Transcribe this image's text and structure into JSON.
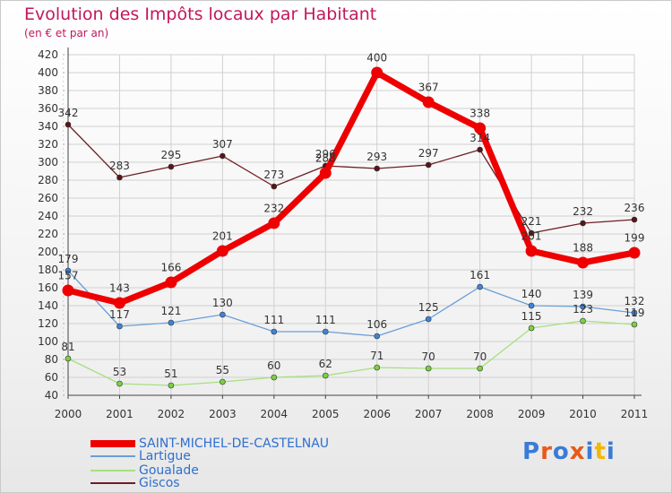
{
  "title": "Evolution des Impôts locaux par Habitant",
  "subtitle": "(en € et par an)",
  "logo": {
    "text": "Proxiti",
    "letter_colors": [
      "#3a7bd5",
      "#e8591a",
      "#3a7bd5",
      "#e8591a",
      "#3a7bd5",
      "#f2b705",
      "#3a7bd5"
    ]
  },
  "chart_data": {
    "type": "line",
    "title": "Evolution des Impôts locaux par Habitant",
    "xlabel": "",
    "ylabel": "(en € et par an)",
    "categories": [
      "2000",
      "2001",
      "2002",
      "2003",
      "2004",
      "2005",
      "2006",
      "2007",
      "2008",
      "2009",
      "2010",
      "2011"
    ],
    "ylim": [
      40,
      420
    ],
    "yticks": [
      40,
      60,
      80,
      100,
      120,
      140,
      160,
      180,
      200,
      220,
      240,
      260,
      280,
      300,
      320,
      340,
      360,
      380,
      400,
      420
    ],
    "grid": true,
    "legend_position": "bottom-left",
    "series": [
      {
        "name": "Giscos",
        "color": "#6d1f24",
        "marker": "#5a1418",
        "width": 1.3,
        "radius": 3,
        "values": [
          342,
          283,
          295,
          307,
          273,
          296,
          293,
          297,
          314,
          221,
          232,
          236
        ],
        "labels": [
          "342",
          "283",
          "295",
          "307",
          "273",
          "296",
          "293",
          "297",
          "314",
          "221",
          "232",
          "236"
        ]
      },
      {
        "name": "Lartigue",
        "color": "#6aa0d6",
        "marker": "#3d84d8",
        "width": 1.3,
        "radius": 3,
        "values": [
          179,
          117,
          121,
          130,
          111,
          111,
          106,
          125,
          161,
          140,
          139,
          132
        ],
        "labels": [
          "179",
          "117",
          "121",
          "130",
          "111",
          "111",
          "106",
          "125",
          "161",
          "140",
          "139",
          "132"
        ]
      },
      {
        "name": "Goualade",
        "color": "#a6df80",
        "marker": "#7bd142",
        "width": 1.3,
        "radius": 3,
        "values": [
          81,
          53,
          51,
          55,
          60,
          62,
          71,
          70,
          70,
          115,
          123,
          119
        ],
        "labels": [
          "81",
          "53",
          "51",
          "55",
          "60",
          "62",
          "71",
          "70",
          "70",
          "115",
          "123",
          "119"
        ]
      },
      {
        "name": "SAINT-MICHEL-DE-CASTELNAU",
        "color": "#ee0000",
        "marker": "#ee0000",
        "width": 7,
        "radius": 6.5,
        "values": [
          157,
          143,
          166,
          201,
          232,
          288,
          400,
          367,
          338,
          201,
          188,
          199
        ],
        "labels": [
          "157",
          "143",
          "166",
          "201",
          "232",
          "288",
          "400",
          "367",
          "338",
          "201",
          "188",
          "199"
        ]
      }
    ]
  },
  "legend": [
    {
      "label": "SAINT-MICHEL-DE-CASTELNAU",
      "color": "#ee0000",
      "thickness": 8
    },
    {
      "label": "Lartigue",
      "color": "#6aa0d6",
      "thickness": 2
    },
    {
      "label": "Goualade",
      "color": "#a6df80",
      "thickness": 2
    },
    {
      "label": "Giscos",
      "color": "#6d1f24",
      "thickness": 2
    }
  ]
}
